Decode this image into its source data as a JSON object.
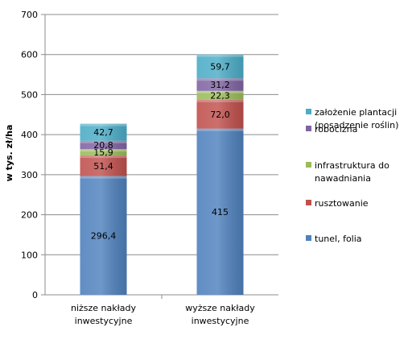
{
  "chart_data": {
    "type": "bar",
    "stacked": true,
    "ylabel": "w tys. zł/ha",
    "ylim": [
      0,
      700
    ],
    "yticks": [
      "0",
      "100",
      "200",
      "300",
      "400",
      "500",
      "600",
      "700"
    ],
    "categories": [
      [
        "niższe nakłady",
        "inwestycyjne"
      ],
      [
        "wyższe nakłady",
        "inwestycyjne"
      ]
    ],
    "series": [
      {
        "name": "tunel, folia",
        "values": [
          296.4,
          415
        ],
        "labels": [
          "296,4",
          "415"
        ],
        "color": "#4F81BD"
      },
      {
        "name": "rusztowanie",
        "values": [
          51.4,
          72.0
        ],
        "labels": [
          "51,4",
          "72,0"
        ],
        "color": "#C0504D"
      },
      {
        "name": "infrastruktura do nawadniania",
        "values": [
          15.9,
          22.3
        ],
        "labels": [
          "15,9",
          "22,3"
        ],
        "color": "#9BBB59"
      },
      {
        "name": "robocizna",
        "values": [
          20.8,
          31.2
        ],
        "labels": [
          "20,8",
          "31,2"
        ],
        "color": "#8064A2"
      },
      {
        "name": "założenie plantacji (posadzenie roślin)",
        "values": [
          42.7,
          59.7
        ],
        "labels": [
          "42,7",
          "59,7"
        ],
        "color": "#4BACC6"
      }
    ],
    "legend": {
      "position": "right",
      "entries": [
        [
          "założenie plantacji",
          "(posadzenie roślin)"
        ],
        [
          "robocizna"
        ],
        [
          "infrastruktura do",
          "nawadniania"
        ],
        [
          "rusztowanie"
        ],
        [
          "tunel, folia"
        ]
      ]
    },
    "grid": true
  }
}
